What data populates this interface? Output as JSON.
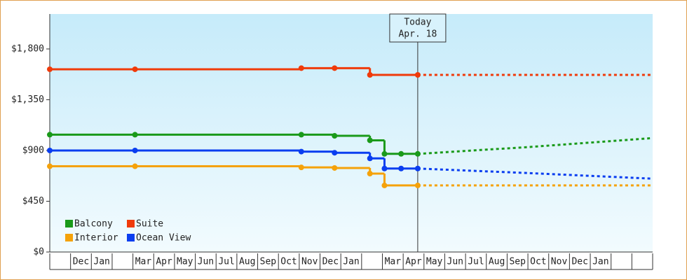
{
  "chart_data": {
    "type": "step-line",
    "ylim": [
      0,
      2110
    ],
    "yticks": [
      {
        "value": 0,
        "label": "$0"
      },
      {
        "value": 450,
        "label": "$450"
      },
      {
        "value": 900,
        "label": "$900"
      },
      {
        "value": 1350,
        "label": "$1,350"
      },
      {
        "value": 1800,
        "label": "$1,800"
      }
    ],
    "xlim": [
      0,
      29
    ],
    "categories": [
      null,
      "Dec",
      "Jan",
      null,
      "Mar",
      "Apr",
      "May",
      "Jun",
      "Jul",
      "Aug",
      "Sep",
      "Oct",
      "Nov",
      "Dec",
      "Jan",
      null,
      "Mar",
      "Apr",
      "May",
      "Jun",
      "Jul",
      "Aug",
      "Sep",
      "Oct",
      "Nov",
      "Dec",
      "Jan",
      null,
      null
    ],
    "annotation": {
      "x": 17.7,
      "lines": [
        "Today",
        "Apr. 18"
      ]
    },
    "series": [
      {
        "name": "Balcony",
        "color": "#1a9a1a",
        "x": [
          0,
          4.1,
          12.1,
          13.7,
          15.4,
          16.1,
          16.9,
          17.7
        ],
        "values": [
          1040,
          1040,
          1040,
          1030,
          990,
          870,
          870,
          870
        ],
        "forecast_x": [
          17.7,
          23,
          29
        ],
        "forecast_values": [
          870,
          930,
          1010
        ]
      },
      {
        "name": "Suite",
        "color": "#f03a0a",
        "x": [
          0,
          4.1,
          12.1,
          13.7,
          15.4,
          17.7
        ],
        "values": [
          1620,
          1620,
          1630,
          1630,
          1570,
          1570
        ],
        "forecast_x": [
          17.7,
          29
        ],
        "forecast_values": [
          1570,
          1570
        ]
      },
      {
        "name": "Interior",
        "color": "#f5a20a",
        "x": [
          0,
          4.1,
          12.1,
          13.7,
          15.4,
          16.1,
          17.7
        ],
        "values": [
          760,
          760,
          750,
          745,
          695,
          590,
          590
        ],
        "forecast_x": [
          17.7,
          29
        ],
        "forecast_values": [
          590,
          590
        ]
      },
      {
        "name": "Ocean View",
        "color": "#0a3ef0",
        "x": [
          0,
          4.1,
          12.1,
          13.7,
          15.4,
          16.1,
          16.9,
          17.7
        ],
        "values": [
          900,
          900,
          890,
          880,
          830,
          740,
          740,
          740
        ],
        "forecast_x": [
          17.7,
          23,
          29
        ],
        "forecast_values": [
          740,
          700,
          650
        ]
      }
    ]
  }
}
